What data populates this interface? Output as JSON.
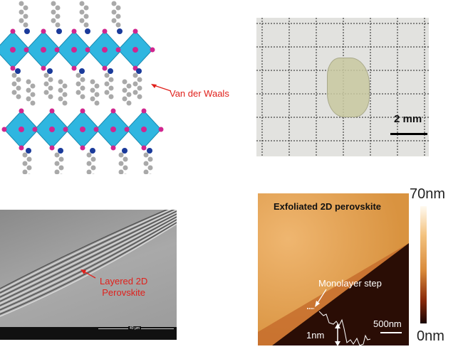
{
  "structure_panel": {
    "vdw_label": "Van der Waals"
  },
  "photo_panel": {
    "scale_label": "2 mm"
  },
  "sem_panel": {
    "layer_label_line1": "Layered 2D",
    "layer_label_line2": "Perovskite",
    "scale_label": "40 µm"
  },
  "afm_panel": {
    "title": "Exfoliated 2D perovskite",
    "step_label": "Monolayer step",
    "height_label": "1nm",
    "scale_label": "500nm",
    "colorbar_max": "70nm",
    "colorbar_min": "0nm"
  },
  "colors": {
    "octahedra": "#2fb6e0",
    "atoms_pink": "#d0268f",
    "nitrogen_blue": "#1a3a9a",
    "carbon_gray": "#a9a9a9",
    "annotation_red": "#e0201b"
  }
}
